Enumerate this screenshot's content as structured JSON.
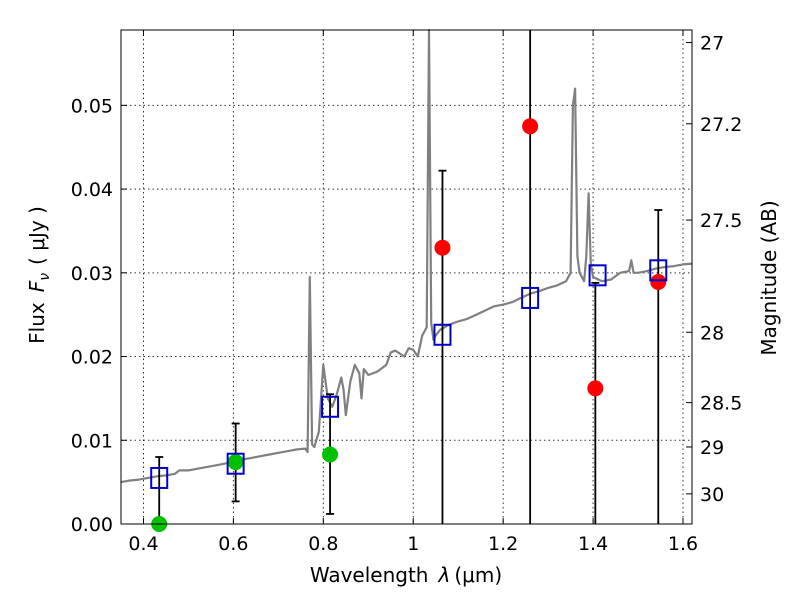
{
  "chart_data": {
    "type": "scatter",
    "xlabel_text": "Wavelength",
    "xlabel_symbol": "λ",
    "xlabel_unit": "(μm)",
    "ylabel_text": "Flux",
    "ylabel_symbol": "F",
    "ylabel_subscript": "ν",
    "ylabel_unit": "( μJy )",
    "y2label": "Magnitude (AB)",
    "xlim": [
      0.35,
      1.62
    ],
    "ylim": [
      0.0,
      0.059
    ],
    "grid": true,
    "x_ticks": [
      {
        "value": 0.4,
        "label": "0.4"
      },
      {
        "value": 0.6,
        "label": "0.6"
      },
      {
        "value": 0.8,
        "label": "0.8"
      },
      {
        "value": 1.0,
        "label": "1"
      },
      {
        "value": 1.2,
        "label": "1.2"
      },
      {
        "value": 1.4,
        "label": "1.4"
      },
      {
        "value": 1.6,
        "label": "1.6"
      }
    ],
    "y_ticks": [
      {
        "value": 0.0,
        "label": "0.00"
      },
      {
        "value": 0.01,
        "label": "0.01"
      },
      {
        "value": 0.02,
        "label": "0.02"
      },
      {
        "value": 0.03,
        "label": "0.03"
      },
      {
        "value": 0.04,
        "label": "0.04"
      },
      {
        "value": 0.05,
        "label": "0.05"
      }
    ],
    "y2_ticks": [
      {
        "flux": 0.0575,
        "label": "27"
      },
      {
        "flux": 0.0478,
        "label": "27.2"
      },
      {
        "flux": 0.0363,
        "label": "27.5"
      },
      {
        "flux": 0.0229,
        "label": "28"
      },
      {
        "flux": 0.0145,
        "label": "28.5"
      },
      {
        "flux": 0.0092,
        "label": "29"
      },
      {
        "flux": 0.0036,
        "label": "30"
      }
    ],
    "model_spectrum": {
      "name": "model SED",
      "color": "#808080",
      "x": [
        0.35,
        0.37,
        0.39,
        0.41,
        0.43,
        0.45,
        0.47,
        0.48,
        0.5,
        0.52,
        0.54,
        0.56,
        0.58,
        0.6,
        0.62,
        0.64,
        0.66,
        0.68,
        0.7,
        0.72,
        0.74,
        0.76,
        0.765,
        0.77,
        0.775,
        0.78,
        0.79,
        0.8,
        0.81,
        0.82,
        0.83,
        0.84,
        0.845,
        0.85,
        0.86,
        0.87,
        0.88,
        0.885,
        0.89,
        0.9,
        0.92,
        0.94,
        0.95,
        0.96,
        0.98,
        0.99,
        1.0,
        1.01,
        1.02,
        1.025,
        1.03,
        1.035,
        1.04,
        1.045,
        1.05,
        1.06,
        1.08,
        1.1,
        1.12,
        1.14,
        1.16,
        1.18,
        1.2,
        1.22,
        1.24,
        1.26,
        1.28,
        1.3,
        1.32,
        1.34,
        1.35,
        1.355,
        1.36,
        1.365,
        1.37,
        1.38,
        1.385,
        1.39,
        1.395,
        1.4,
        1.42,
        1.44,
        1.46,
        1.48,
        1.485,
        1.49,
        1.5,
        1.52,
        1.54,
        1.56,
        1.58,
        1.6,
        1.62
      ],
      "y": [
        0.005,
        0.0052,
        0.0053,
        0.0055,
        0.0057,
        0.0058,
        0.006,
        0.0064,
        0.0064,
        0.0066,
        0.0068,
        0.007,
        0.0072,
        0.0074,
        0.0077,
        0.0079,
        0.0081,
        0.0083,
        0.0085,
        0.0087,
        0.0089,
        0.009,
        0.0086,
        0.0295,
        0.0095,
        0.0092,
        0.011,
        0.019,
        0.015,
        0.014,
        0.0155,
        0.0175,
        0.016,
        0.013,
        0.017,
        0.019,
        0.018,
        0.015,
        0.0185,
        0.0178,
        0.0182,
        0.019,
        0.0205,
        0.0207,
        0.02,
        0.021,
        0.0208,
        0.02,
        0.0225,
        0.023,
        0.0235,
        0.059,
        0.024,
        0.022,
        0.0225,
        0.0232,
        0.0238,
        0.0242,
        0.0245,
        0.025,
        0.0255,
        0.026,
        0.0262,
        0.0265,
        0.027,
        0.0275,
        0.0278,
        0.0282,
        0.0285,
        0.029,
        0.03,
        0.05,
        0.052,
        0.032,
        0.03,
        0.029,
        0.032,
        0.0395,
        0.031,
        0.0295,
        0.029,
        0.0292,
        0.03,
        0.0302,
        0.0315,
        0.03,
        0.03,
        0.0302,
        0.0305,
        0.0307,
        0.0308,
        0.031,
        0.0311
      ]
    },
    "series": [
      {
        "name": "red points",
        "color": "#ff0000",
        "marker": "circle",
        "x": [
          1.065,
          1.26,
          1.405,
          1.545
        ],
        "y": [
          0.033,
          0.0475,
          0.0162,
          0.0289
        ],
        "err_low": [
          0.033,
          0.0475,
          0.0162,
          0.0289
        ],
        "err_high": [
          0.0092,
          0.0115,
          0.0126,
          0.0086
        ]
      },
      {
        "name": "green points",
        "color": "#00c000",
        "marker": "circle",
        "x": [
          0.435,
          0.605,
          0.815
        ],
        "y": [
          0.0,
          0.0074,
          0.0083
        ],
        "err_low": [
          0.0,
          0.0047,
          0.0071
        ],
        "err_high": [
          0.008,
          0.0046,
          0.0072
        ]
      },
      {
        "name": "model band fluxes",
        "color": "#0000cc",
        "marker": "square-open",
        "x": [
          0.435,
          0.605,
          0.815,
          1.065,
          1.26,
          1.41,
          1.545
        ],
        "y": [
          0.0055,
          0.0072,
          0.014,
          0.0226,
          0.027,
          0.0297,
          0.0303
        ]
      }
    ]
  }
}
